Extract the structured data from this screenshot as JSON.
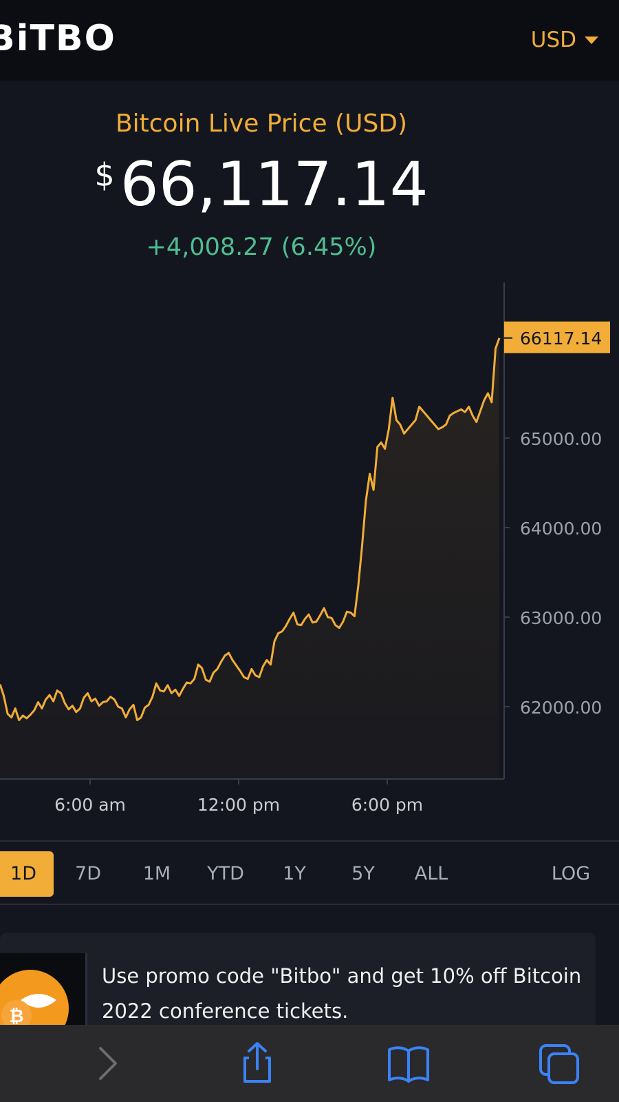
{
  "header": {
    "logo": "BiTBO",
    "currency": "USD"
  },
  "price": {
    "title": "Bitcoin Live Price (USD)",
    "currency_symbol": "$",
    "value": "66,117.14",
    "change": "+4,008.27 (6.45%)"
  },
  "chart_data": {
    "type": "area",
    "title": "",
    "xlabel": "",
    "ylabel": "",
    "current_value_label": "66117.14",
    "y_ticks": [
      "65000.00",
      "64000.00",
      "63000.00",
      "62000.00"
    ],
    "x_ticks": [
      "6:00 am",
      "12:00 pm",
      "6:00 pm"
    ],
    "ylim": [
      61200,
      66600
    ],
    "series": [
      {
        "values": [
          62250,
          62120,
          61920,
          61880,
          61980,
          61850,
          61900,
          61870,
          61910,
          61960,
          62050,
          61980,
          62080,
          62130,
          62060,
          62180,
          62150,
          62040,
          61970,
          62010,
          61940,
          61980,
          62100,
          62150,
          62060,
          62090,
          62010,
          62050,
          62060,
          62110,
          62080,
          62000,
          61980,
          61880,
          61970,
          62020,
          61850,
          61880,
          61990,
          62020,
          62110,
          62260,
          62180,
          62170,
          62240,
          62150,
          62190,
          62120,
          62200,
          62270,
          62260,
          62310,
          62470,
          62430,
          62300,
          62280,
          62380,
          62420,
          62500,
          62570,
          62600,
          62520,
          62460,
          62400,
          62330,
          62310,
          62420,
          62350,
          62330,
          62450,
          62520,
          62470,
          62730,
          62820,
          62840,
          62900,
          62980,
          63050,
          62920,
          62910,
          62980,
          63030,
          62940,
          62950,
          63020,
          63100,
          63000,
          62990,
          62910,
          62880,
          62950,
          63060,
          63050,
          63010,
          63350,
          63800,
          64300,
          64600,
          64420,
          64900,
          64950,
          64880,
          65100,
          65450,
          65200,
          65150,
          65050,
          65100,
          65150,
          65200,
          65350,
          65300,
          65250,
          65200,
          65150,
          65100,
          65120,
          65150,
          65250,
          65280,
          65300,
          65320,
          65290,
          65350,
          65250,
          65180,
          65300,
          65420,
          65500,
          65400,
          66000,
          66117.14
        ]
      }
    ]
  },
  "ranges": [
    "1D",
    "7D",
    "1M",
    "YTD",
    "1Y",
    "5Y",
    "ALL"
  ],
  "active_range": "1D",
  "log_label": "LOG",
  "promo": {
    "text": "Use promo code \"Bitbo\" and get 10% off Bitcoin 2022 conference tickets."
  },
  "colors": {
    "accent": "#f1ad37",
    "positive": "#4fbd91",
    "background": "#13161e"
  },
  "browser_toolbar": [
    "forward-icon",
    "share-icon",
    "bookmarks-icon",
    "tabs-icon"
  ]
}
